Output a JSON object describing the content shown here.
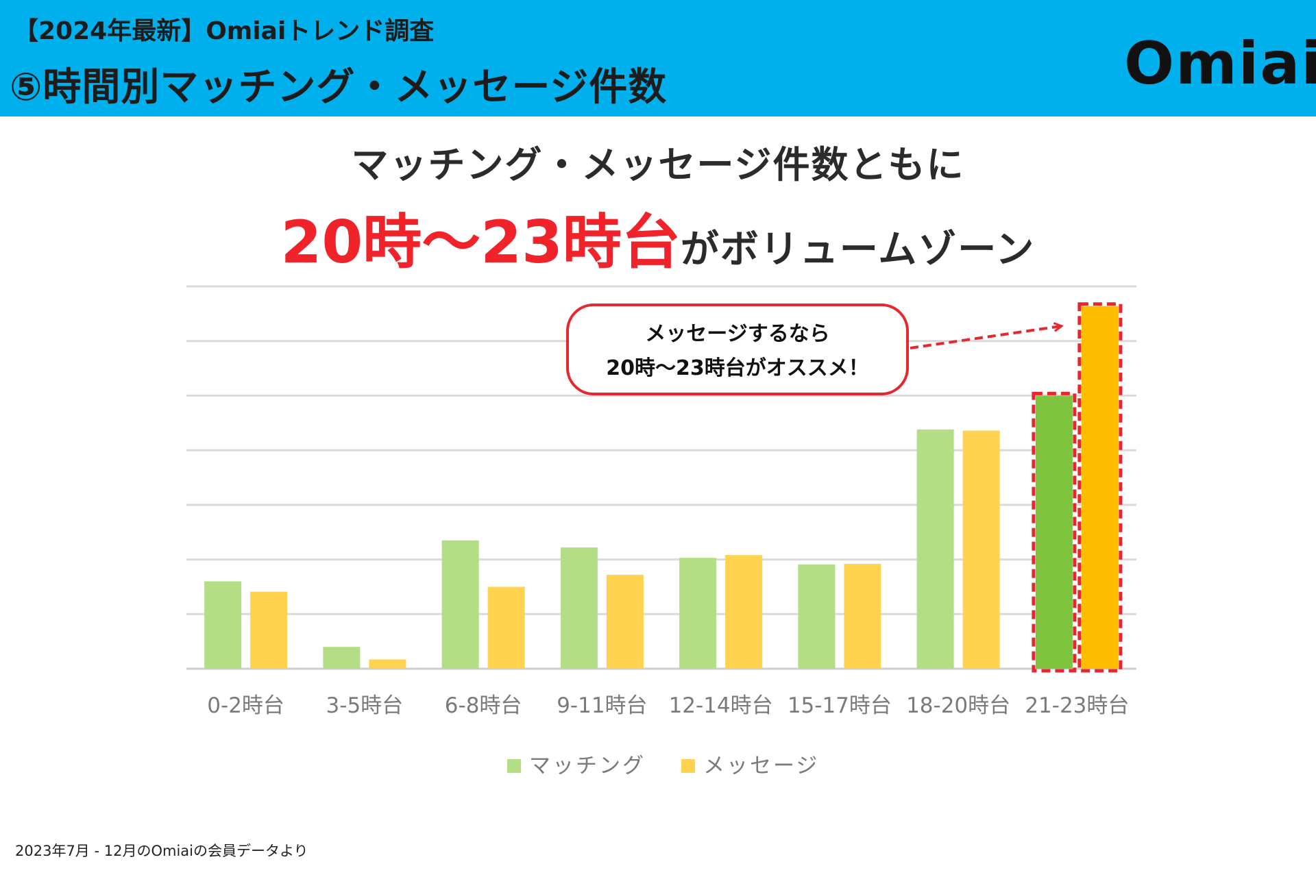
{
  "header": {
    "kicker": "【2024年最新】Omiaiトレンド調査",
    "title": "⑤時間別マッチング・メッセージ件数",
    "logo_text": "Omiai",
    "background_color": "#00b0ec"
  },
  "headline": {
    "line1": "マッチング・メッセージ件数ともに",
    "highlight": "20時〜23時台",
    "line2_rest": "がボリュームゾーン",
    "highlight_color": "#f0232b"
  },
  "callout": {
    "line1": "メッセージするなら",
    "line2": "20時〜23時台がオススメ！"
  },
  "chart_data": {
    "type": "bar",
    "categories": [
      "0-2時台",
      "3-5時台",
      "6-8時台",
      "9-11時台",
      "12-14時台",
      "15-17時台",
      "18-20時台",
      "21-23時台"
    ],
    "series": [
      {
        "name": "マッチング",
        "color": "#b3de85",
        "highlight_color": "#7fc43e",
        "values": [
          1.6,
          0.4,
          2.35,
          2.22,
          2.03,
          1.91,
          4.38,
          5.0
        ]
      },
      {
        "name": "メッセージ",
        "color": "#ffd24f",
        "highlight_color": "#ffbd00",
        "values": [
          1.41,
          0.17,
          1.5,
          1.72,
          2.08,
          1.92,
          4.36,
          6.64
        ]
      }
    ],
    "highlighted_categories": [
      "21-23時台"
    ],
    "ylim": [
      0,
      7
    ],
    "grid": true,
    "y_tick_labels_shown": false,
    "legend_position": "bottom"
  },
  "footnote": "2023年7月 - 12月のOmiaiの会員データより"
}
